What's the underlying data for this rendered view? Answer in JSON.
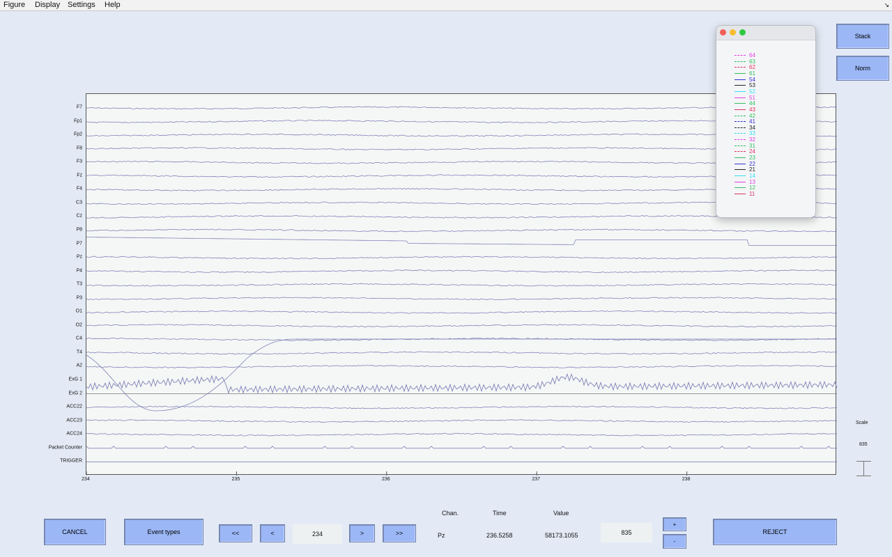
{
  "menubar": {
    "items": [
      "Figure",
      "Display",
      "Settings",
      "Help"
    ],
    "corner_glyph": "↘"
  },
  "channels": [
    "F7",
    "Fp1",
    "Fp2",
    "F8",
    "F3",
    "Fz",
    "F4",
    "C3",
    "Cz",
    "P8",
    "P7",
    "Pz",
    "P4",
    "T3",
    "P3",
    "O1",
    "O2",
    "C4",
    "T4",
    "A2",
    "ExG 1",
    "ExG 2",
    "ACC22",
    "ACC23",
    "ACC24",
    "Packet Counter",
    "TRIGGER"
  ],
  "x_axis": {
    "ticks": [
      "234",
      "235",
      "236",
      "237",
      "238"
    ],
    "range": [
      234,
      239
    ]
  },
  "trace_color": "#8080b8",
  "side_buttons": {
    "stack": "Stack",
    "norm": "Norm"
  },
  "scale": {
    "label": "Scale",
    "value": "835"
  },
  "legend": {
    "entries": [
      {
        "name": "64",
        "color": "#e040e0",
        "dash": true
      },
      {
        "name": "63",
        "color": "#30c060",
        "dash": true
      },
      {
        "name": "62",
        "color": "#e03060",
        "dash": true
      },
      {
        "name": "61",
        "color": "#30c060",
        "dash": false
      },
      {
        "name": "54",
        "color": "#3030d0",
        "dash": false
      },
      {
        "name": "53",
        "color": "#222222",
        "dash": false
      },
      {
        "name": "52",
        "color": "#30e0f0",
        "dash": false
      },
      {
        "name": "51",
        "color": "#e040e0",
        "dash": false
      },
      {
        "name": "44",
        "color": "#30c060",
        "dash": false
      },
      {
        "name": "43",
        "color": "#e03060",
        "dash": false
      },
      {
        "name": "42",
        "color": "#30c060",
        "dash": true
      },
      {
        "name": "41",
        "color": "#3030d0",
        "dash": true
      },
      {
        "name": "34",
        "color": "#222222",
        "dash": true
      },
      {
        "name": "33",
        "color": "#30e0f0",
        "dash": true
      },
      {
        "name": "32",
        "color": "#e040e0",
        "dash": true
      },
      {
        "name": "31",
        "color": "#30c060",
        "dash": true
      },
      {
        "name": "24",
        "color": "#e03060",
        "dash": true
      },
      {
        "name": "23",
        "color": "#30c060",
        "dash": false
      },
      {
        "name": "22",
        "color": "#3030d0",
        "dash": false
      },
      {
        "name": "21",
        "color": "#222222",
        "dash": false
      },
      {
        "name": "14",
        "color": "#30e0f0",
        "dash": false
      },
      {
        "name": "13",
        "color": "#e040e0",
        "dash": false
      },
      {
        "name": "12",
        "color": "#30c060",
        "dash": false
      },
      {
        "name": "11",
        "color": "#e03060",
        "dash": false
      }
    ]
  },
  "bottom": {
    "cancel": "CANCEL",
    "event_types": "Event types",
    "first": "<<",
    "prev": "<",
    "position": "234",
    "next": ">",
    "last": ">>",
    "info_headers": {
      "chan": "Chan.",
      "time": "Time",
      "value": "Value"
    },
    "info_values": {
      "chan": "Pz",
      "time": "236.5258",
      "value": "58173.1055"
    },
    "scale_field": "835",
    "plus": "+",
    "minus": "-",
    "reject": "REJECT"
  }
}
